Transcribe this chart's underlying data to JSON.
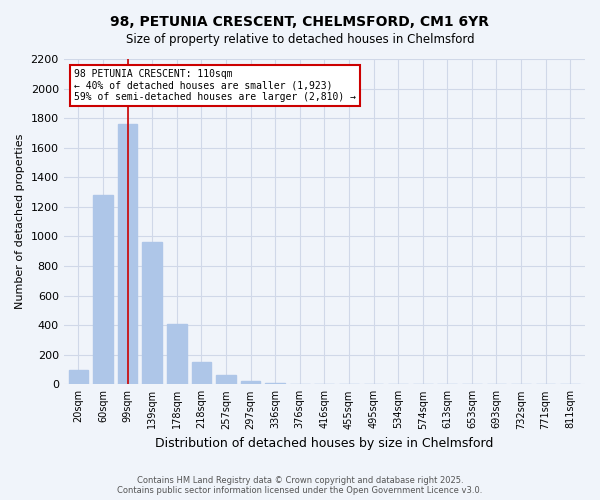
{
  "title_line1": "98, PETUNIA CRESCENT, CHELMSFORD, CM1 6YR",
  "title_line2": "Size of property relative to detached houses in Chelmsford",
  "xlabel": "Distribution of detached houses by size in Chelmsford",
  "ylabel": "Number of detached properties",
  "footer_line1": "Contains HM Land Registry data © Crown copyright and database right 2025.",
  "footer_line2": "Contains public sector information licensed under the Open Government Licence v3.0.",
  "annotation_title": "98 PETUNIA CRESCENT: 110sqm",
  "annotation_line2": "← 40% of detached houses are smaller (1,923)",
  "annotation_line3": "59% of semi-detached houses are larger (2,810) →",
  "categories": [
    "20sqm",
    "60sqm",
    "99sqm",
    "139sqm",
    "178sqm",
    "218sqm",
    "257sqm",
    "297sqm",
    "336sqm",
    "376sqm",
    "416sqm",
    "455sqm",
    "495sqm",
    "534sqm",
    "574sqm",
    "613sqm",
    "653sqm",
    "693sqm",
    "732sqm",
    "771sqm",
    "811sqm"
  ],
  "values": [
    100,
    1280,
    1760,
    960,
    410,
    150,
    60,
    25,
    12,
    5,
    3,
    2,
    1,
    1,
    1,
    0,
    0,
    0,
    0,
    0,
    0
  ],
  "bar_color": "#aec6e8",
  "highlight_bar_index": 2,
  "highlight_line_color": "#cc0000",
  "grid_color": "#d0d8e8",
  "background_color": "#f0f4fa",
  "annotation_box_color": "#ffffff",
  "annotation_box_edge_color": "#cc0000",
  "ylim": [
    0,
    2200
  ],
  "yticks": [
    0,
    200,
    400,
    600,
    800,
    1000,
    1200,
    1400,
    1600,
    1800,
    2000,
    2200
  ]
}
